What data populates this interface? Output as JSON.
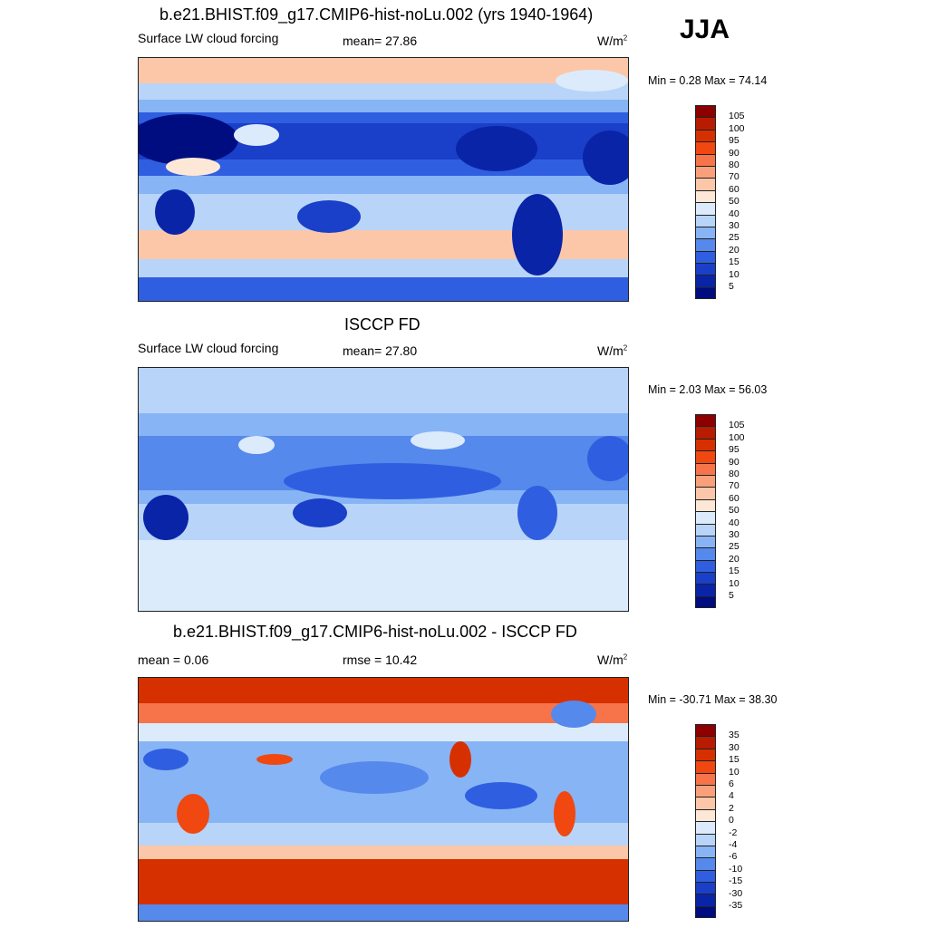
{
  "season": "JJA",
  "panels": [
    {
      "title": "b.e21.BHIST.f09_g17.CMIP6-hist-noLu.002 (yrs 1940-1964)",
      "left": "Surface LW cloud forcing",
      "middle": "mean=  27.86",
      "units_base": "W/m",
      "units_exp": "2",
      "minmax": "Min =   0.28 Max =  74.14",
      "levels": [
        "105",
        "100",
        "95",
        "90",
        "80",
        "70",
        "60",
        "50",
        "40",
        "30",
        "25",
        "20",
        "15",
        "10",
        "5"
      ],
      "colors": [
        "#8c0000",
        "#b81c00",
        "#d73000",
        "#f04810",
        "#f7744a",
        "#f9a07a",
        "#fbc7a8",
        "#fde8d8",
        "#dcebfb",
        "#b8d4f8",
        "#87b4f5",
        "#5689ec",
        "#2f5fe0",
        "#1a3fc8",
        "#0a24a8",
        "#000d80"
      ]
    },
    {
      "title": "ISCCP FD",
      "left": "Surface LW cloud forcing",
      "middle": "mean=  27.80",
      "units_base": "W/m",
      "units_exp": "2",
      "minmax": "Min =   2.03 Max =  56.03",
      "levels": [
        "105",
        "100",
        "95",
        "90",
        "80",
        "70",
        "60",
        "50",
        "40",
        "30",
        "25",
        "20",
        "15",
        "10",
        "5"
      ],
      "colors": [
        "#8c0000",
        "#b81c00",
        "#d73000",
        "#f04810",
        "#f7744a",
        "#f9a07a",
        "#fbc7a8",
        "#fde8d8",
        "#dcebfb",
        "#b8d4f8",
        "#87b4f5",
        "#5689ec",
        "#2f5fe0",
        "#1a3fc8",
        "#0a24a8",
        "#000d80"
      ]
    },
    {
      "title": "b.e21.BHIST.f09_g17.CMIP6-hist-noLu.002 - ISCCP FD",
      "left": "mean =   0.06",
      "middle": "rmse =  10.42",
      "units_base": "W/m",
      "units_exp": "2",
      "minmax": "Min = -30.71 Max =  38.30",
      "levels": [
        "35",
        "30",
        "15",
        "10",
        "6",
        "4",
        "2",
        "0",
        "-2",
        "-4",
        "-6",
        "-10",
        "-15",
        "-30",
        "-35"
      ],
      "colors": [
        "#8c0000",
        "#b81c00",
        "#d73000",
        "#f04810",
        "#f7744a",
        "#f9a07a",
        "#fbc7a8",
        "#fde8d8",
        "#dcebfb",
        "#b8d4f8",
        "#87b4f5",
        "#5689ec",
        "#2f5fe0",
        "#1a3fc8",
        "#0a24a8",
        "#000d80"
      ]
    }
  ]
}
